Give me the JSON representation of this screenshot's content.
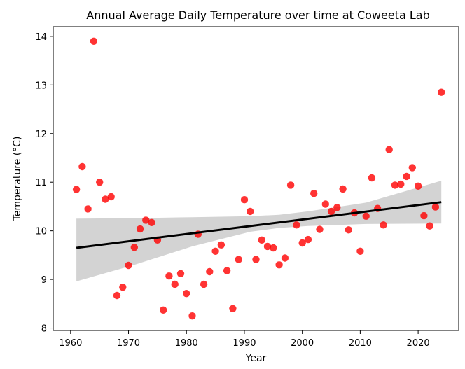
{
  "chart_data": {
    "type": "scatter",
    "title": "Annual Average Daily Temperature over time at Coweeta Lab",
    "xlabel": "Year",
    "ylabel": "Temperature (°C)",
    "xlim": [
      1957.0,
      2027.0
    ],
    "ylim": [
      7.95,
      14.2
    ],
    "xticks": [
      1960,
      1970,
      1980,
      1990,
      2000,
      2010,
      2020
    ],
    "yticks": [
      8,
      9,
      10,
      11,
      12,
      13,
      14
    ],
    "grid": false,
    "colors": {
      "points": "#ff0000",
      "trend": "#000000",
      "band": "#d3d3d3"
    },
    "points": [
      {
        "x": 1961,
        "y": 10.85
      },
      {
        "x": 1962,
        "y": 11.32
      },
      {
        "x": 1963,
        "y": 10.45
      },
      {
        "x": 1964,
        "y": 13.9
      },
      {
        "x": 1965,
        "y": 11.0
      },
      {
        "x": 1966,
        "y": 10.65
      },
      {
        "x": 1967,
        "y": 10.7
      },
      {
        "x": 1968,
        "y": 8.67
      },
      {
        "x": 1969,
        "y": 8.84
      },
      {
        "x": 1970,
        "y": 9.29
      },
      {
        "x": 1971,
        "y": 9.66
      },
      {
        "x": 1972,
        "y": 10.04
      },
      {
        "x": 1973,
        "y": 10.22
      },
      {
        "x": 1974,
        "y": 10.17
      },
      {
        "x": 1975,
        "y": 9.81
      },
      {
        "x": 1976,
        "y": 8.37
      },
      {
        "x": 1977,
        "y": 9.07
      },
      {
        "x": 1978,
        "y": 8.9
      },
      {
        "x": 1979,
        "y": 9.12
      },
      {
        "x": 1980,
        "y": 8.71
      },
      {
        "x": 1981,
        "y": 8.25
      },
      {
        "x": 1982,
        "y": 9.93
      },
      {
        "x": 1983,
        "y": 8.9
      },
      {
        "x": 1984,
        "y": 9.16
      },
      {
        "x": 1985,
        "y": 9.58
      },
      {
        "x": 1986,
        "y": 9.71
      },
      {
        "x": 1987,
        "y": 9.18
      },
      {
        "x": 1988,
        "y": 8.4
      },
      {
        "x": 1989,
        "y": 9.41
      },
      {
        "x": 1990,
        "y": 10.64
      },
      {
        "x": 1991,
        "y": 10.4
      },
      {
        "x": 1992,
        "y": 9.41
      },
      {
        "x": 1993,
        "y": 9.81
      },
      {
        "x": 1994,
        "y": 9.68
      },
      {
        "x": 1995,
        "y": 9.65
      },
      {
        "x": 1996,
        "y": 9.3
      },
      {
        "x": 1997,
        "y": 9.44
      },
      {
        "x": 1998,
        "y": 10.94
      },
      {
        "x": 1999,
        "y": 10.12
      },
      {
        "x": 2000,
        "y": 9.75
      },
      {
        "x": 2001,
        "y": 9.82
      },
      {
        "x": 2002,
        "y": 10.77
      },
      {
        "x": 2003,
        "y": 10.03
      },
      {
        "x": 2004,
        "y": 10.55
      },
      {
        "x": 2005,
        "y": 10.4
      },
      {
        "x": 2006,
        "y": 10.48
      },
      {
        "x": 2007,
        "y": 10.86
      },
      {
        "x": 2008,
        "y": 10.02
      },
      {
        "x": 2009,
        "y": 10.37
      },
      {
        "x": 2010,
        "y": 9.58
      },
      {
        "x": 2011,
        "y": 10.3
      },
      {
        "x": 2012,
        "y": 11.09
      },
      {
        "x": 2013,
        "y": 10.46
      },
      {
        "x": 2014,
        "y": 10.12
      },
      {
        "x": 2015,
        "y": 11.67
      },
      {
        "x": 2016,
        "y": 10.94
      },
      {
        "x": 2017,
        "y": 10.96
      },
      {
        "x": 2018,
        "y": 11.12
      },
      {
        "x": 2019,
        "y": 11.3
      },
      {
        "x": 2020,
        "y": 10.92
      },
      {
        "x": 2021,
        "y": 10.31
      },
      {
        "x": 2022,
        "y": 10.1
      },
      {
        "x": 2023,
        "y": 10.49
      },
      {
        "x": 2024,
        "y": 12.85
      }
    ],
    "trend_line": {
      "x": [
        1961,
        2024
      ],
      "y": [
        9.65,
        10.59
      ]
    },
    "confidence_band": {
      "x": [
        1961,
        1971,
        1981,
        1991,
        1996,
        2001,
        2011,
        2024
      ],
      "lower": [
        8.96,
        9.3,
        9.68,
        9.98,
        10.06,
        10.1,
        10.14,
        10.15
      ],
      "upper": [
        10.25,
        10.26,
        10.28,
        10.3,
        10.33,
        10.4,
        10.58,
        11.03
      ]
    }
  }
}
